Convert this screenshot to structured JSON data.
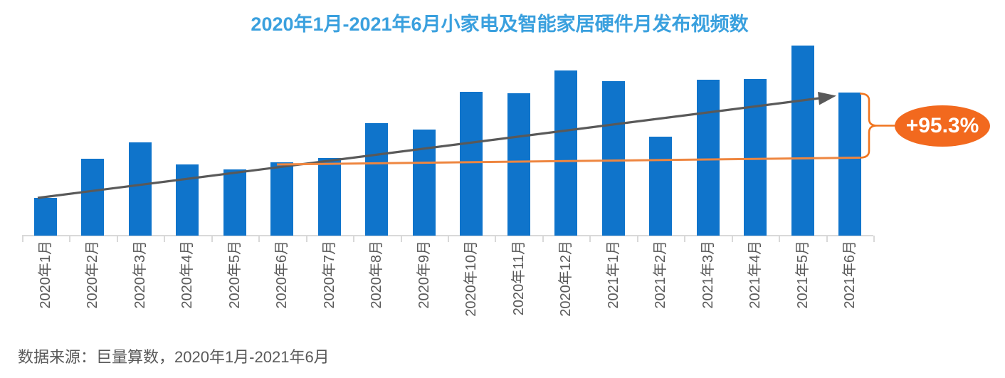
{
  "title": "2020年1月-2021年6月小家电及智能家居硬件月发布视频数",
  "source_note": "数据来源：巨量算数，2020年1月-2021年6月",
  "badge_label": "+95.3%",
  "colors": {
    "bar": "#0F74CB",
    "title": "#3AA0DE",
    "arrow": "#595959",
    "trend_line": "#EE8640",
    "badge": "#F2691E",
    "brace": "#F0751F",
    "axis": "#D9D9D9",
    "label": "#595959"
  },
  "chart_data": {
    "type": "bar",
    "title": "2020年1月-2021年6月小家电及智能家居硬件月发布视频数",
    "xlabel": "",
    "ylabel": "",
    "categories": [
      "2020年1月",
      "2020年2月",
      "2020年3月",
      "2020年4月",
      "2020年5月",
      "2020年6月",
      "2020年7月",
      "2020年8月",
      "2020年9月",
      "2020年10月",
      "2020年11月",
      "2020年12月",
      "2021年1月",
      "2021年2月",
      "2021年3月",
      "2021年4月",
      "2021年5月",
      "2021年6月"
    ],
    "values": [
      51,
      105,
      127,
      97,
      90,
      100,
      106,
      153,
      145,
      196,
      194,
      225,
      211,
      135,
      213,
      214,
      259,
      195.3
    ],
    "unit": "relative index (2020年6月 = 100, no y-axis shown)",
    "ylim": [
      0,
      270
    ],
    "grid": false,
    "legend": false,
    "x_tick_rotation": 90,
    "annotations": [
      {
        "type": "trend-arrow",
        "desc": "dark gray straight arrow from top of 2020年1月 bar to top of 2021年6月 bar"
      },
      {
        "type": "reference-line",
        "desc": "orange horizontal line from top of 2020年6月 bar extending right to 2021年6月"
      },
      {
        "type": "brace-badge",
        "label": "+95.3%",
        "desc": "orange brace between 2021年6月 bar top and reference line, pointing to orange ellipse badge"
      }
    ]
  }
}
